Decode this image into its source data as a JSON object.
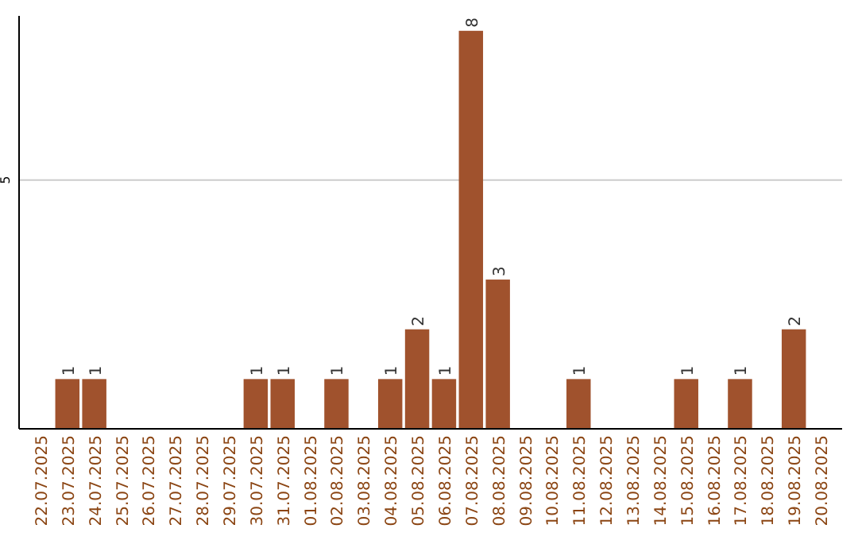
{
  "chart_data": {
    "type": "bar",
    "categories": [
      "22.07.2025",
      "23.07.2025",
      "24.07.2025",
      "25.07.2025",
      "26.07.2025",
      "27.07.2025",
      "28.07.2025",
      "29.07.2025",
      "30.07.2025",
      "31.07.2025",
      "01.08.2025",
      "02.08.2025",
      "03.08.2025",
      "04.08.2025",
      "05.08.2025",
      "06.08.2025",
      "07.08.2025",
      "08.08.2025",
      "09.08.2025",
      "10.08.2025",
      "11.08.2025",
      "12.08.2025",
      "13.08.2025",
      "14.08.2025",
      "15.08.2025",
      "16.08.2025",
      "17.08.2025",
      "18.08.2025",
      "19.08.2025",
      "20.08.2025"
    ],
    "values": [
      0,
      1,
      1,
      0,
      0,
      0,
      0,
      0,
      1,
      1,
      0,
      1,
      0,
      1,
      2,
      1,
      8,
      3,
      0,
      0,
      1,
      0,
      0,
      0,
      1,
      0,
      1,
      0,
      2,
      0
    ],
    "value_labels": [
      null,
      "1",
      "1",
      null,
      null,
      null,
      null,
      null,
      "1",
      "1",
      null,
      "1",
      null,
      "1",
      "2",
      "1",
      "8",
      "3",
      null,
      null,
      "1",
      null,
      null,
      null,
      "1",
      null,
      "1",
      null,
      "2",
      null
    ],
    "color": "#a0522d",
    "ylim": [
      0,
      8.3
    ],
    "yticks": [
      5
    ],
    "grid": "y"
  }
}
